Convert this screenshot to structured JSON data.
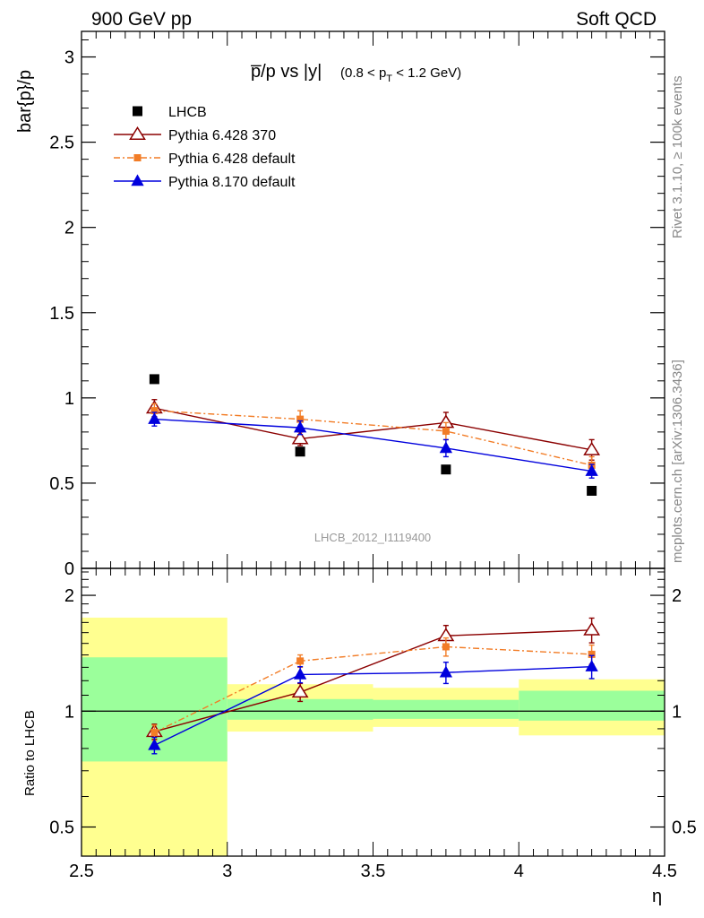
{
  "header": {
    "left": "900 GeV pp",
    "right": "Soft QCD"
  },
  "side_labels": {
    "top": "Rivet 3.1.10, ≥ 100k events",
    "bottom": "mcplots.cern.ch [arXiv:1306.3436]"
  },
  "chart_data": [
    {
      "type": "scatter",
      "title_main": "p̅/p vs |y|",
      "title_sub": "(0.8 < p",
      "title_sub_T": "T",
      "title_sub_end": " < 1.2 GeV)",
      "ylabel": "bar{p}/p",
      "xlabel": "",
      "watermark": "LHCB_2012_I1119400",
      "xlim": [
        2.5,
        4.5
      ],
      "ylim": [
        0,
        3.15
      ],
      "y_ticks": [
        0,
        0.5,
        1,
        1.5,
        2,
        2.5,
        3
      ],
      "y_tick_labels": [
        "0",
        "0.5",
        "1",
        "1.5",
        "2",
        "2.5",
        "3"
      ],
      "legend_position": "top-left",
      "x": [
        2.75,
        3.25,
        3.75,
        4.25
      ],
      "series": [
        {
          "name": "LHCB",
          "color": "#000000",
          "marker": "filled-square",
          "line": "none",
          "values": [
            1.11,
            0.685,
            0.58,
            0.455
          ],
          "errors": [
            0,
            0,
            0,
            0
          ]
        },
        {
          "name": "Pythia 6.428 370",
          "color": "#8b0000",
          "marker": "open-triangle",
          "line": "solid",
          "values": [
            0.94,
            0.76,
            0.855,
            0.695
          ],
          "errors": [
            0.05,
            0.04,
            0.06,
            0.06
          ]
        },
        {
          "name": "Pythia 6.428 default",
          "color": "#f27c26",
          "marker": "filled-square",
          "line": "dashdot",
          "values": [
            0.925,
            0.875,
            0.805,
            0.605
          ],
          "errors": [
            0.04,
            0.05,
            0.05,
            0.05
          ]
        },
        {
          "name": "Pythia 8.170 default",
          "color": "#0000dd",
          "marker": "filled-triangle",
          "line": "solid",
          "values": [
            0.875,
            0.825,
            0.705,
            0.57
          ],
          "errors": [
            0.04,
            0.04,
            0.05,
            0.04
          ]
        }
      ]
    },
    {
      "type": "scatter",
      "ylabel": "Ratio to LHCB",
      "xlabel": "η",
      "xlim": [
        2.5,
        4.5
      ],
      "ylim": [
        0.42,
        2.35
      ],
      "y_scale": "log",
      "y_ticks": [
        0.5,
        1,
        2
      ],
      "y_tick_labels": [
        "0.5",
        "1",
        "2"
      ],
      "x_ticks": [
        2.5,
        3,
        3.5,
        4,
        4.5
      ],
      "x_tick_labels": [
        "2.5",
        "3",
        "3.5",
        "4",
        "4.5"
      ],
      "reference_line": 1,
      "bands": [
        {
          "x": [
            2.5,
            3.0
          ],
          "yellow": [
            0.42,
            1.75
          ],
          "green": [
            0.74,
            1.38
          ]
        },
        {
          "x": [
            3.0,
            3.5
          ],
          "yellow": [
            0.885,
            1.175
          ],
          "green": [
            0.95,
            1.075
          ]
        },
        {
          "x": [
            3.5,
            4.0
          ],
          "yellow": [
            0.91,
            1.15
          ],
          "green": [
            0.955,
            1.07
          ]
        },
        {
          "x": [
            4.0,
            4.5
          ],
          "yellow": [
            0.865,
            1.21
          ],
          "green": [
            0.945,
            1.13
          ]
        }
      ],
      "x": [
        2.75,
        3.25,
        3.75,
        4.25
      ],
      "series": [
        {
          "name": "Pythia 6.428 370",
          "color": "#8b0000",
          "marker": "open-triangle",
          "line": "solid",
          "values": [
            0.885,
            1.12,
            1.57,
            1.625
          ],
          "errors": [
            0.04,
            0.06,
            0.1,
            0.12
          ]
        },
        {
          "name": "Pythia 6.428 default",
          "color": "#f27c26",
          "marker": "filled-square",
          "line": "dashdot",
          "values": [
            0.88,
            1.35,
            1.47,
            1.405
          ],
          "errors": [
            0.04,
            0.05,
            0.08,
            0.08
          ]
        },
        {
          "name": "Pythia 8.170 default",
          "color": "#0000dd",
          "marker": "filled-triangle",
          "line": "solid",
          "values": [
            0.815,
            1.245,
            1.26,
            1.305
          ],
          "errors": [
            0.04,
            0.06,
            0.08,
            0.09
          ]
        }
      ]
    }
  ]
}
